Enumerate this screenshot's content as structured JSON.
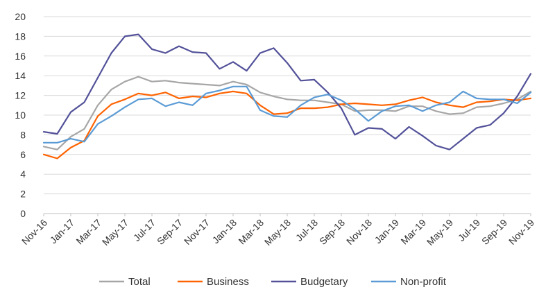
{
  "chart_data": {
    "type": "line",
    "title": "",
    "xlabel": "",
    "ylabel": "",
    "ylim": [
      0,
      20
    ],
    "yticks": [
      0,
      2,
      4,
      6,
      8,
      10,
      12,
      14,
      16,
      18,
      20
    ],
    "grid": true,
    "legend_position": "bottom",
    "x": [
      "Nov-16",
      "Dec-16",
      "Jan-17",
      "Feb-17",
      "Mar-17",
      "Apr-17",
      "May-17",
      "Jun-17",
      "Jul-17",
      "Aug-17",
      "Sep-17",
      "Oct-17",
      "Nov-17",
      "Dec-17",
      "Jan-18",
      "Feb-18",
      "Mar-18",
      "Apr-18",
      "May-18",
      "Jun-18",
      "Jul-18",
      "Aug-18",
      "Sep-18",
      "Oct-18",
      "Nov-18",
      "Dec-18",
      "Jan-19",
      "Feb-19",
      "Mar-19",
      "Apr-19",
      "May-19",
      "Jun-19",
      "Jul-19",
      "Aug-19",
      "Sep-19",
      "Oct-19",
      "Nov-19"
    ],
    "xtick_labels": [
      "Nov-16",
      "Jan-17",
      "Mar-17",
      "May-17",
      "Jul-17",
      "Sep-17",
      "Nov-17",
      "Jan-18",
      "Mar-18",
      "May-18",
      "Jul-18",
      "Sep-18",
      "Nov-18",
      "Jan-19",
      "Mar-19",
      "May-19",
      "Jul-19",
      "Sep-19",
      "Nov-19"
    ],
    "series": [
      {
        "name": "Total",
        "color": "#a6a6a6",
        "values": [
          6.8,
          6.5,
          7.8,
          8.6,
          11.0,
          12.6,
          13.4,
          13.9,
          13.4,
          13.5,
          13.3,
          13.2,
          13.1,
          13.0,
          13.4,
          13.1,
          12.3,
          11.9,
          11.6,
          11.5,
          11.5,
          11.3,
          11.1,
          10.4,
          10.5,
          10.5,
          10.4,
          10.9,
          10.9,
          10.4,
          10.1,
          10.2,
          10.8,
          10.9,
          11.2,
          11.6,
          12.4
        ]
      },
      {
        "name": "Business",
        "color": "#ff6200",
        "values": [
          6.0,
          5.6,
          6.7,
          7.4,
          9.9,
          11.1,
          11.6,
          12.2,
          12.0,
          12.3,
          11.7,
          11.9,
          11.8,
          12.2,
          12.4,
          12.2,
          11.0,
          10.1,
          10.2,
          10.7,
          10.7,
          10.8,
          11.1,
          11.2,
          11.1,
          11.0,
          11.1,
          11.5,
          11.8,
          11.3,
          11.0,
          10.8,
          11.3,
          11.4,
          11.6,
          11.5,
          11.7
        ]
      },
      {
        "name": "Budgetary",
        "color": "#525199",
        "values": [
          8.3,
          8.1,
          10.3,
          11.3,
          13.8,
          16.3,
          18.0,
          18.2,
          16.7,
          16.3,
          17.0,
          16.4,
          16.3,
          14.7,
          15.4,
          14.5,
          16.3,
          16.8,
          15.3,
          13.5,
          13.6,
          12.3,
          10.7,
          8.0,
          8.7,
          8.6,
          7.6,
          8.8,
          7.9,
          6.9,
          6.5,
          7.6,
          8.7,
          9.0,
          10.2,
          11.9,
          14.2
        ]
      },
      {
        "name": "Non-profit",
        "color": "#5b9bd5",
        "values": [
          7.2,
          7.2,
          7.6,
          7.3,
          9.1,
          9.9,
          10.8,
          11.6,
          11.7,
          10.9,
          11.3,
          11.0,
          12.2,
          12.5,
          12.9,
          12.9,
          10.5,
          9.9,
          9.8,
          11.0,
          11.8,
          12.1,
          11.5,
          10.6,
          9.4,
          10.4,
          10.9,
          11.0,
          10.4,
          11.0,
          11.3,
          12.4,
          11.7,
          11.6,
          11.6,
          11.2,
          12.3
        ]
      }
    ]
  }
}
